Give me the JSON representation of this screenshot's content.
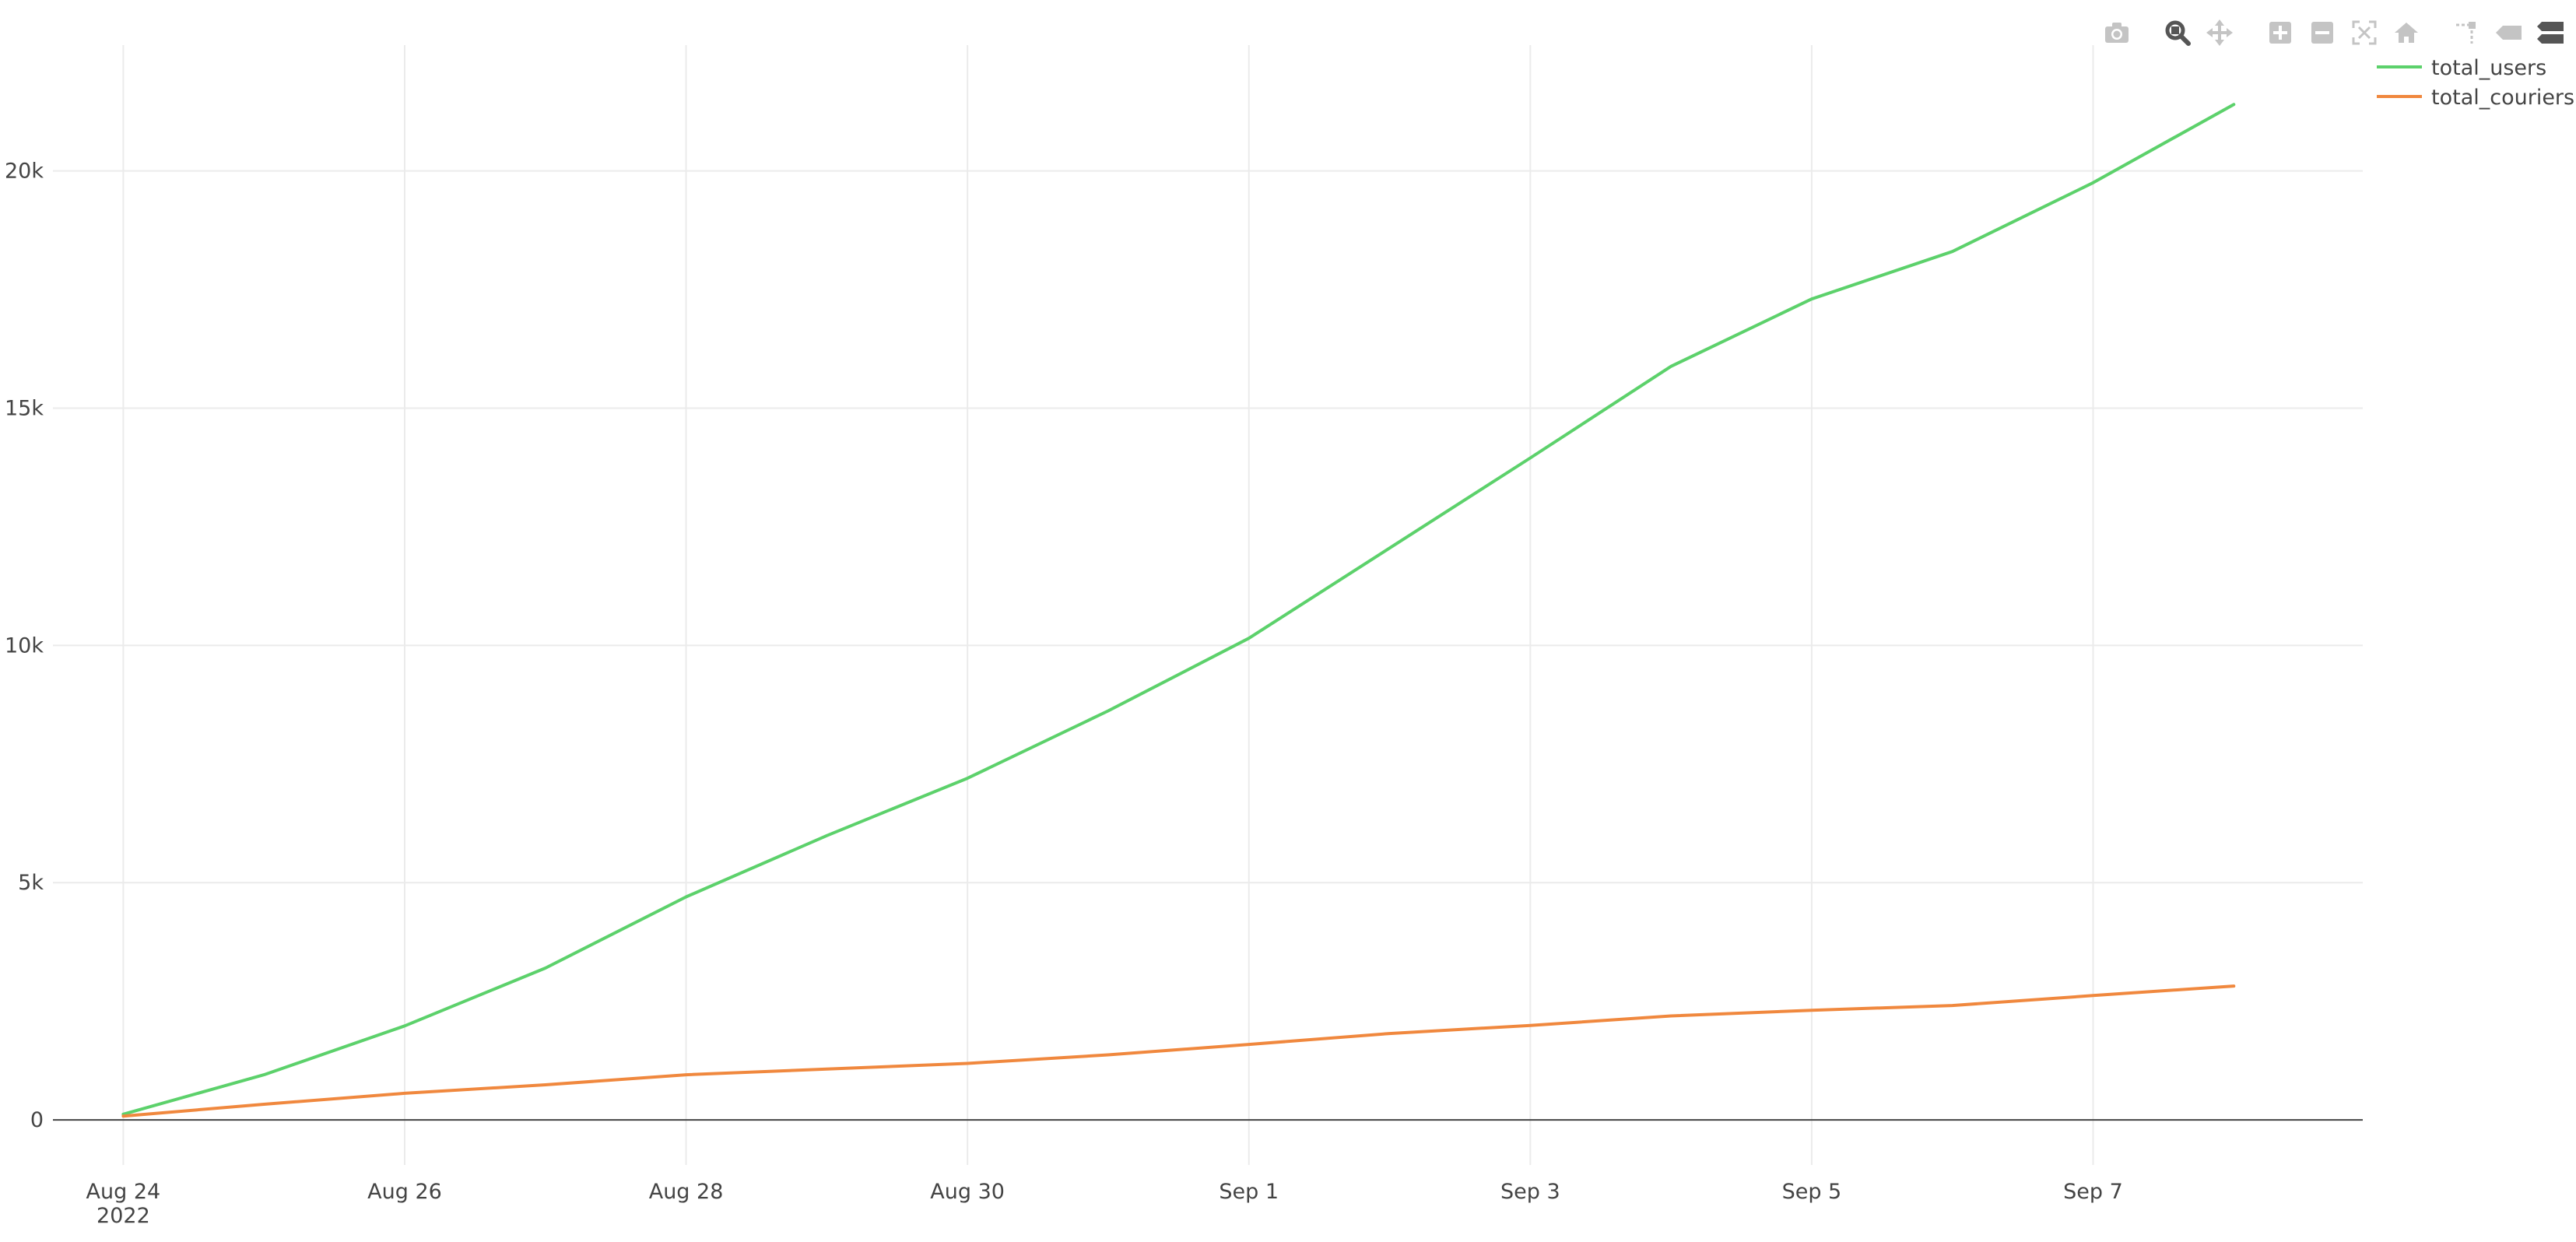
{
  "chart_data": {
    "type": "line",
    "x": [
      "2022-08-24",
      "2022-08-25",
      "2022-08-26",
      "2022-08-27",
      "2022-08-28",
      "2022-08-29",
      "2022-08-30",
      "2022-08-31",
      "2022-09-01",
      "2022-09-02",
      "2022-09-03",
      "2022-09-04",
      "2022-09-05",
      "2022-09-06",
      "2022-09-07",
      "2022-09-08"
    ],
    "series": [
      {
        "name": "total_users",
        "color": "#5cd16b",
        "values": [
          120,
          950,
          1980,
          3200,
          4700,
          5990,
          7200,
          8620,
          10150,
          12050,
          13950,
          15880,
          17300,
          18300,
          19750,
          21400
        ]
      },
      {
        "name": "total_couriers",
        "color": "#f0883e",
        "values": [
          80,
          330,
          560,
          740,
          950,
          1070,
          1190,
          1370,
          1590,
          1820,
          1990,
          2190,
          2310,
          2410,
          2620,
          2820
        ]
      }
    ],
    "xlim": [
      "2022-08-23T12:00",
      "2022-09-08T22:00"
    ],
    "ylim": [
      -950,
      22650
    ],
    "x_ticks": [
      {
        "date": "2022-08-24",
        "label": "Aug 24",
        "sublabel": "2022"
      },
      {
        "date": "2022-08-26",
        "label": "Aug 26",
        "sublabel": ""
      },
      {
        "date": "2022-08-28",
        "label": "Aug 28",
        "sublabel": ""
      },
      {
        "date": "2022-08-30",
        "label": "Aug 30",
        "sublabel": ""
      },
      {
        "date": "2022-09-01",
        "label": "Sep 1",
        "sublabel": ""
      },
      {
        "date": "2022-09-03",
        "label": "Sep 3",
        "sublabel": ""
      },
      {
        "date": "2022-09-05",
        "label": "Sep 5",
        "sublabel": ""
      },
      {
        "date": "2022-09-07",
        "label": "Sep 7",
        "sublabel": ""
      }
    ],
    "y_ticks": [
      {
        "value": 0,
        "label": "0"
      },
      {
        "value": 5000,
        "label": "5k"
      },
      {
        "value": 10000,
        "label": "10k"
      },
      {
        "value": 15000,
        "label": "15k"
      },
      {
        "value": 20000,
        "label": "20k"
      }
    ],
    "grid": true,
    "legend_position": "top-right",
    "title": "",
    "xlabel": "",
    "ylabel": ""
  },
  "modebar": {
    "icons": [
      "camera-icon",
      "zoom-icon",
      "pan-icon",
      "zoom-in-icon",
      "zoom-out-icon",
      "autoscale-icon",
      "reset-axes-icon",
      "spike-lines-icon",
      "hover-closest-icon",
      "hover-compare-icon"
    ],
    "active": "zoom-icon"
  }
}
